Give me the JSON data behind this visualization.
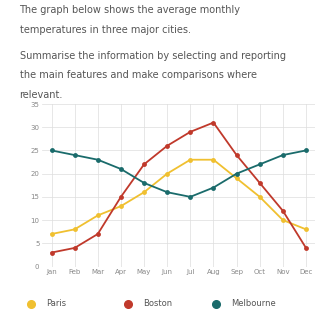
{
  "months": [
    "Jan",
    "Feb",
    "Mar",
    "Apr",
    "May",
    "Jun",
    "Jul",
    "Aug",
    "Sep",
    "Oct",
    "Nov",
    "Dec"
  ],
  "paris": [
    7,
    8,
    11,
    13,
    16,
    20,
    23,
    23,
    19,
    15,
    10,
    8
  ],
  "boston": [
    3,
    4,
    7,
    15,
    22,
    26,
    29,
    31,
    24,
    18,
    12,
    4
  ],
  "melbourne": [
    25,
    24,
    23,
    21,
    18,
    16,
    15,
    17,
    20,
    22,
    24,
    25
  ],
  "paris_color": "#f0c030",
  "boston_color": "#c0392b",
  "melbourne_color": "#1a6b6b",
  "title_line1": "The graph below shows the average monthly",
  "title_line2": "temperatures in three major cities.",
  "subtitle_line1": "Summarise the information by selecting and reporting",
  "subtitle_line2": "the main features and make comparisons where",
  "subtitle_line3": "relevant.",
  "ylim": [
    0,
    35
  ],
  "yticks": [
    0,
    5,
    10,
    15,
    20,
    25,
    30,
    35
  ],
  "legend_labels": [
    "Paris",
    "Boston",
    "Melbourne"
  ],
  "text_color": "#555555",
  "grid_color": "#dddddd",
  "tick_color": "#888888"
}
